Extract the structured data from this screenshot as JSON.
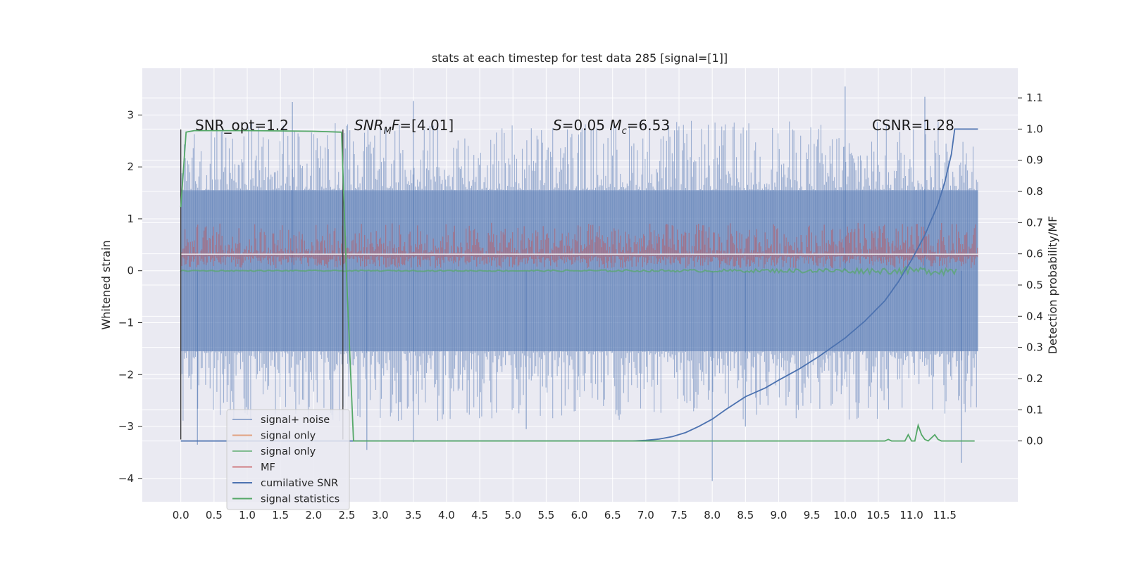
{
  "chart_data": {
    "type": "line",
    "title": "stats at each timestep for test data 285 [signal=[1]]",
    "xlabel": "",
    "ylabel": "Whitened strain",
    "y2label": "Detection probability/MF",
    "xlim": [
      -0.58,
      12.6
    ],
    "ylim": [
      -4.45,
      3.9
    ],
    "y2lim": [
      -0.195,
      1.195
    ],
    "grid": true,
    "legend_position": "lower-left",
    "x_ticks": [
      "0.0",
      "0.5",
      "1.0",
      "1.5",
      "2.0",
      "2.5",
      "3.0",
      "3.5",
      "4.0",
      "4.5",
      "5.0",
      "5.5",
      "6.0",
      "6.5",
      "7.0",
      "7.5",
      "8.0",
      "8.5",
      "9.0",
      "9.5",
      "10.0",
      "10.5",
      "11.0",
      "11.5"
    ],
    "y_ticks": [
      "−4",
      "−3",
      "−2",
      "−1",
      "0",
      "1",
      "2",
      "3"
    ],
    "y2_ticks": [
      "0.0",
      "0.1",
      "0.2",
      "0.3",
      "0.4",
      "0.5",
      "0.6",
      "0.7",
      "0.8",
      "0.9",
      "1.0",
      "1.1"
    ],
    "annotations": [
      {
        "text": "SNR_opt=1.2",
        "x": 0.2
      },
      {
        "text": "SNR_M F=[4.01]",
        "x": 2.6
      },
      {
        "text": "S=0.05  M_c=6.53",
        "x": 5.6
      },
      {
        "text": "CSNR=1.28",
        "x": 10.4
      }
    ],
    "signal_window": [
      0.0,
      2.44
    ],
    "noise_band": {
      "x_range": [
        0.0,
        12.0
      ],
      "typical_half_width": 1.55,
      "extreme_max": 3.55,
      "extreme_min": -4.05
    },
    "mf_band": {
      "x_range": [
        0.0,
        12.0
      ],
      "y_range": [
        0.05,
        0.6
      ]
    },
    "series": [
      {
        "name": "signal+ noise",
        "color": "#4c72b0",
        "axis": "left"
      },
      {
        "name": "signal only",
        "color": "#dd8452",
        "axis": "left"
      },
      {
        "name": "signal only",
        "color": "#55a868",
        "axis": "left"
      },
      {
        "name": "MF",
        "color": "#c44e52",
        "axis": "left"
      },
      {
        "name": "cumilative SNR",
        "color": "#4c72b0",
        "axis": "right",
        "x": [
          0,
          6.0,
          6.8,
          7.0,
          7.2,
          7.4,
          7.6,
          7.8,
          8.0,
          8.2,
          8.5,
          8.8,
          9.0,
          9.3,
          9.6,
          10.0,
          10.3,
          10.6,
          10.8,
          11.0,
          11.2,
          11.4,
          11.5,
          11.6,
          11.65,
          11.7,
          12.0
        ],
        "y": [
          0,
          0,
          0.0,
          0.002,
          0.006,
          0.014,
          0.027,
          0.047,
          0.07,
          0.1,
          0.142,
          0.17,
          0.195,
          0.23,
          0.27,
          0.33,
          0.385,
          0.45,
          0.51,
          0.58,
          0.66,
          0.76,
          0.83,
          0.92,
          1.0,
          1.0,
          1.0
        ]
      },
      {
        "name": "signal statistics",
        "color": "#55a868",
        "axis": "right",
        "x": [
          0,
          0.08,
          0.2,
          1.0,
          2.0,
          2.42,
          2.5,
          2.6,
          10.6,
          10.65,
          10.7,
          10.9,
          10.95,
          11.0,
          11.05,
          11.1,
          11.15,
          11.2,
          11.25,
          11.3,
          11.35,
          11.4,
          11.45,
          11.6,
          11.95
        ],
        "y": [
          0.75,
          0.99,
          0.995,
          0.995,
          0.993,
          0.99,
          0.5,
          0.0,
          0.0,
          0.005,
          0.0,
          0.0,
          0.02,
          0.0,
          0.0,
          0.05,
          0.02,
          0.005,
          0.0,
          0.01,
          0.02,
          0.005,
          0.0,
          0.0,
          0.0
        ]
      }
    ],
    "legend": [
      "signal+ noise",
      "signal only",
      "signal only",
      "MF",
      "cumilative SNR",
      "signal statistics"
    ],
    "colors": {
      "background": "#eaeaf2",
      "grid": "#ffffff",
      "noise": "#4c72b0",
      "mf": "#c44e52",
      "signal_green": "#55a868",
      "csnr": "#4c72b0",
      "window_line": "#333333"
    }
  }
}
